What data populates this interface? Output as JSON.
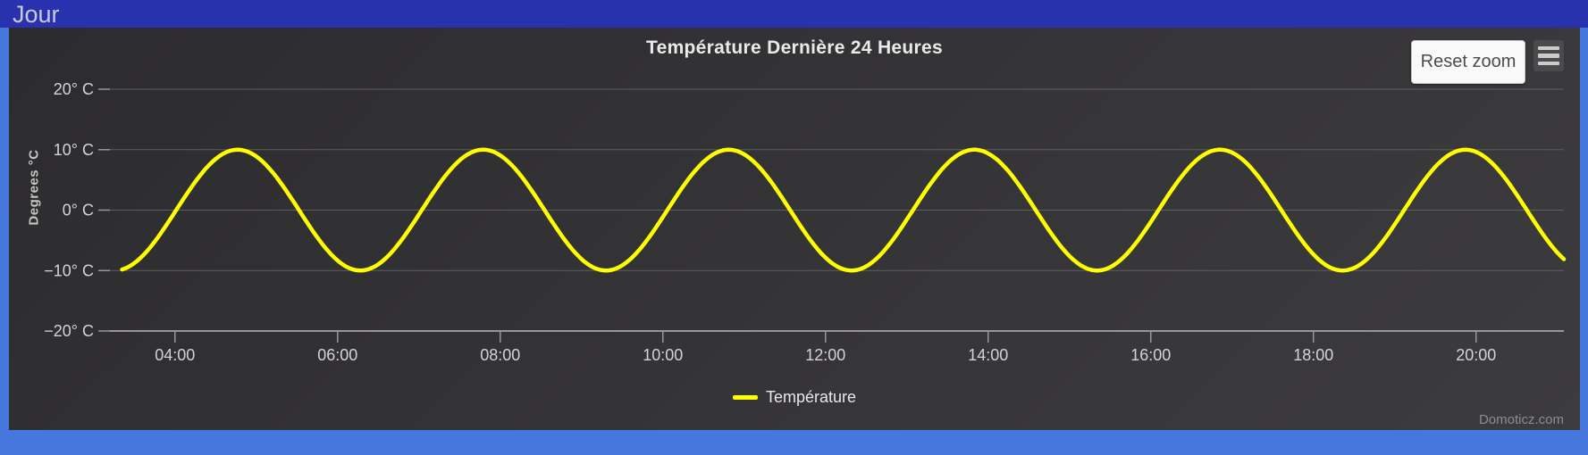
{
  "page": {
    "header": {
      "label": "Jour"
    },
    "colors": {
      "header_bar": "#2832ae",
      "page_background": "#4677dd"
    }
  },
  "chart": {
    "title": "Température Dernière 24 Heures",
    "reset_zoom_label": "Reset zoom",
    "watermark": "Domoticz.com",
    "y_axis": {
      "title": "Degrees °C",
      "tick_labels": [
        "20° C",
        "10° C",
        "0° C",
        "−10° C",
        "−20° C"
      ],
      "tick_values": [
        20,
        10,
        0,
        -10,
        -20
      ]
    },
    "x_axis": {
      "tick_labels": [
        "04:00",
        "06:00",
        "08:00",
        "10:00",
        "12:00",
        "14:00",
        "16:00",
        "18:00",
        "20:00"
      ],
      "tick_values": [
        4,
        6,
        8,
        10,
        12,
        14,
        16,
        18,
        20
      ]
    },
    "legend": [
      {
        "label": "Température",
        "color": "#ffff00"
      }
    ],
    "icons": {
      "menu": "hamburger-icon"
    }
  },
  "chart_data": {
    "type": "line",
    "title": "Température Dernière 24 Heures",
    "xlabel": "",
    "ylabel": "Degrees °C",
    "ylim": [
      -20,
      20
    ],
    "x_unit": "hour_of_day",
    "xlim_hours": [
      3.2,
      21.08
    ],
    "x_tick_hours": [
      4,
      6,
      8,
      10,
      12,
      14,
      16,
      18,
      20
    ],
    "grid": true,
    "legend_position": "bottom-center",
    "series": [
      {
        "name": "Température",
        "color": "#ffff00",
        "line_width": 4.5,
        "x_start_hour": 3.35,
        "x_end_hour": 21.08,
        "wave": {
          "shape": "sine",
          "mean_c": 0,
          "amplitude_c": 10,
          "period_hours": 3.02,
          "trough_at_hour": 3.26
        },
        "keypoints": [
          [
            "03:21",
            -9.8
          ],
          [
            "04:01",
            0
          ],
          [
            "04:46",
            10
          ],
          [
            "05:32",
            0
          ],
          [
            "06:17",
            -10
          ],
          [
            "07:02",
            0
          ],
          [
            "07:47",
            10
          ],
          [
            "08:33",
            0
          ],
          [
            "09:18",
            -10
          ],
          [
            "10:03",
            0
          ],
          [
            "10:49",
            10
          ],
          [
            "11:34",
            0
          ],
          [
            "12:19",
            -10
          ],
          [
            "13:05",
            0
          ],
          [
            "13:50",
            10
          ],
          [
            "14:35",
            0
          ],
          [
            "15:20",
            -10
          ],
          [
            "16:06",
            0
          ],
          [
            "16:51",
            10
          ],
          [
            "17:36",
            0
          ],
          [
            "18:22",
            -10
          ],
          [
            "19:07",
            0
          ],
          [
            "19:52",
            10
          ],
          [
            "20:38",
            0
          ],
          [
            "21:05",
            -8
          ]
        ]
      }
    ]
  }
}
